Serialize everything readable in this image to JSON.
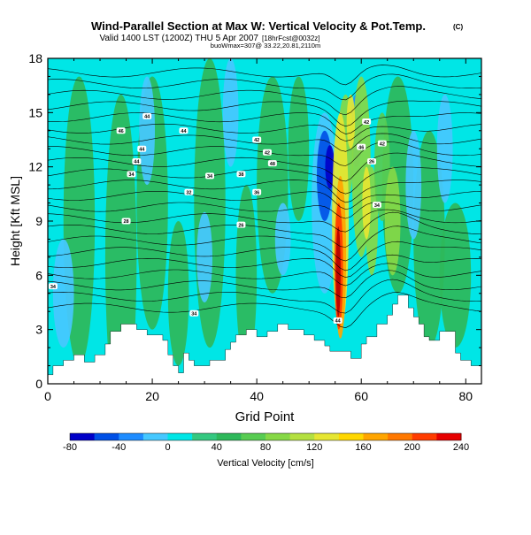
{
  "header": {
    "title": "Wind-Parallel Section at Max W: Vertical Velocity & Pot.Temp.",
    "copyright": "(C)",
    "valid_line": "Valid 1400 LST (1200Z) THU 5 Apr 2007",
    "forecast_tag": "[18hrFcst@0032z]",
    "max_line": "buoWmax=307@ 33.22,20.81,2110m"
  },
  "chart_data": {
    "type": "heatmap",
    "xlabel": "Grid Point",
    "ylabel": "Height [Kft MSL]",
    "xlim": [
      0,
      83
    ],
    "ylim": [
      0,
      18
    ],
    "x_ticks": [
      0,
      20,
      40,
      60,
      80
    ],
    "y_ticks": [
      0,
      3,
      6,
      9,
      12,
      15,
      18
    ],
    "field": "Vertical Velocity",
    "color_levels": [
      -80,
      -60,
      -40,
      -20,
      0,
      20,
      40,
      60,
      80,
      100,
      120,
      140,
      160,
      180,
      200,
      220,
      240
    ],
    "colorbar_ticks": [
      -80,
      -40,
      0,
      40,
      80,
      120,
      160,
      200,
      240
    ],
    "colorbar_label": "Vertical Velocity [cm/s]",
    "colors": [
      "#0000c8",
      "#0050e6",
      "#1e8cff",
      "#46c8ff",
      "#00e6e6",
      "#34c880",
      "#2eb85a",
      "#58cc52",
      "#86d846",
      "#b4e040",
      "#e6e632",
      "#ffd700",
      "#ffa500",
      "#ff7800",
      "#ff3c00",
      "#e60000",
      "#b40000"
    ],
    "terrain_kft": [
      [
        0,
        0.5
      ],
      [
        1,
        0.5
      ],
      [
        1,
        1
      ],
      [
        3,
        1
      ],
      [
        3,
        1.3
      ],
      [
        5,
        1.3
      ],
      [
        5,
        1.6
      ],
      [
        7,
        1.6
      ],
      [
        7,
        1.2
      ],
      [
        9,
        1.2
      ],
      [
        9,
        1.6
      ],
      [
        11,
        1.6
      ],
      [
        11,
        2.2
      ],
      [
        12,
        2.2
      ],
      [
        12,
        2.9
      ],
      [
        14,
        2.9
      ],
      [
        14,
        3.3
      ],
      [
        17,
        3.3
      ],
      [
        17,
        3
      ],
      [
        19,
        3
      ],
      [
        19,
        2.7
      ],
      [
        22,
        2.7
      ],
      [
        22,
        2.4
      ],
      [
        23,
        2.4
      ],
      [
        23,
        1.6
      ],
      [
        24,
        1.6
      ],
      [
        24,
        1
      ],
      [
        25,
        1
      ],
      [
        25,
        0.6
      ],
      [
        26,
        0.6
      ],
      [
        26,
        1.7
      ],
      [
        27,
        1.7
      ],
      [
        27,
        1.3
      ],
      [
        28,
        1.3
      ],
      [
        28,
        1
      ],
      [
        31,
        1
      ],
      [
        31,
        1.3
      ],
      [
        34,
        1.3
      ],
      [
        34,
        1.9
      ],
      [
        35,
        1.9
      ],
      [
        35,
        2.3
      ],
      [
        36,
        2.3
      ],
      [
        36,
        2.7
      ],
      [
        38,
        2.7
      ],
      [
        38,
        3
      ],
      [
        40,
        3
      ],
      [
        40,
        2.6
      ],
      [
        42,
        2.6
      ],
      [
        42,
        2.9
      ],
      [
        44,
        2.9
      ],
      [
        44,
        3.3
      ],
      [
        46,
        3.3
      ],
      [
        46,
        3
      ],
      [
        49,
        3
      ],
      [
        49,
        2.7
      ],
      [
        51,
        2.7
      ],
      [
        51,
        2.4
      ],
      [
        53,
        2.4
      ],
      [
        53,
        2.1
      ],
      [
        54,
        2.1
      ],
      [
        54,
        1.8
      ],
      [
        58,
        1.8
      ],
      [
        58,
        1.4
      ],
      [
        60,
        1.4
      ],
      [
        60,
        2.2
      ],
      [
        61,
        2.2
      ],
      [
        61,
        2.6
      ],
      [
        63,
        2.6
      ],
      [
        63,
        3.3
      ],
      [
        65,
        3.3
      ],
      [
        65,
        3.8
      ],
      [
        66,
        3.8
      ],
      [
        66,
        4.4
      ],
      [
        67,
        4.4
      ],
      [
        67,
        4.9
      ],
      [
        69,
        4.9
      ],
      [
        69,
        4.2
      ],
      [
        70,
        4.2
      ],
      [
        70,
        3.7
      ],
      [
        71,
        3.7
      ],
      [
        71,
        3.3
      ],
      [
        72,
        3.3
      ],
      [
        72,
        2.6
      ],
      [
        73,
        2.6
      ],
      [
        73,
        2.4
      ],
      [
        75,
        2.4
      ],
      [
        75,
        2.9
      ],
      [
        78,
        2.9
      ],
      [
        78,
        1.7
      ],
      [
        79,
        1.7
      ],
      [
        79,
        1.3
      ],
      [
        81,
        1.3
      ],
      [
        81,
        1
      ],
      [
        83,
        1
      ]
    ],
    "updraft_core": {
      "grid_point": 56,
      "height_kft": 6,
      "max_vertical_velocity": 307
    },
    "contour_labels": [
      "44",
      "46",
      "44",
      "44",
      "44",
      "34",
      "34",
      "42",
      "42",
      "48",
      "38",
      "36",
      "28",
      "26",
      "32",
      "34",
      "34",
      "44",
      "42",
      "46",
      "42",
      "26",
      "34"
    ]
  }
}
